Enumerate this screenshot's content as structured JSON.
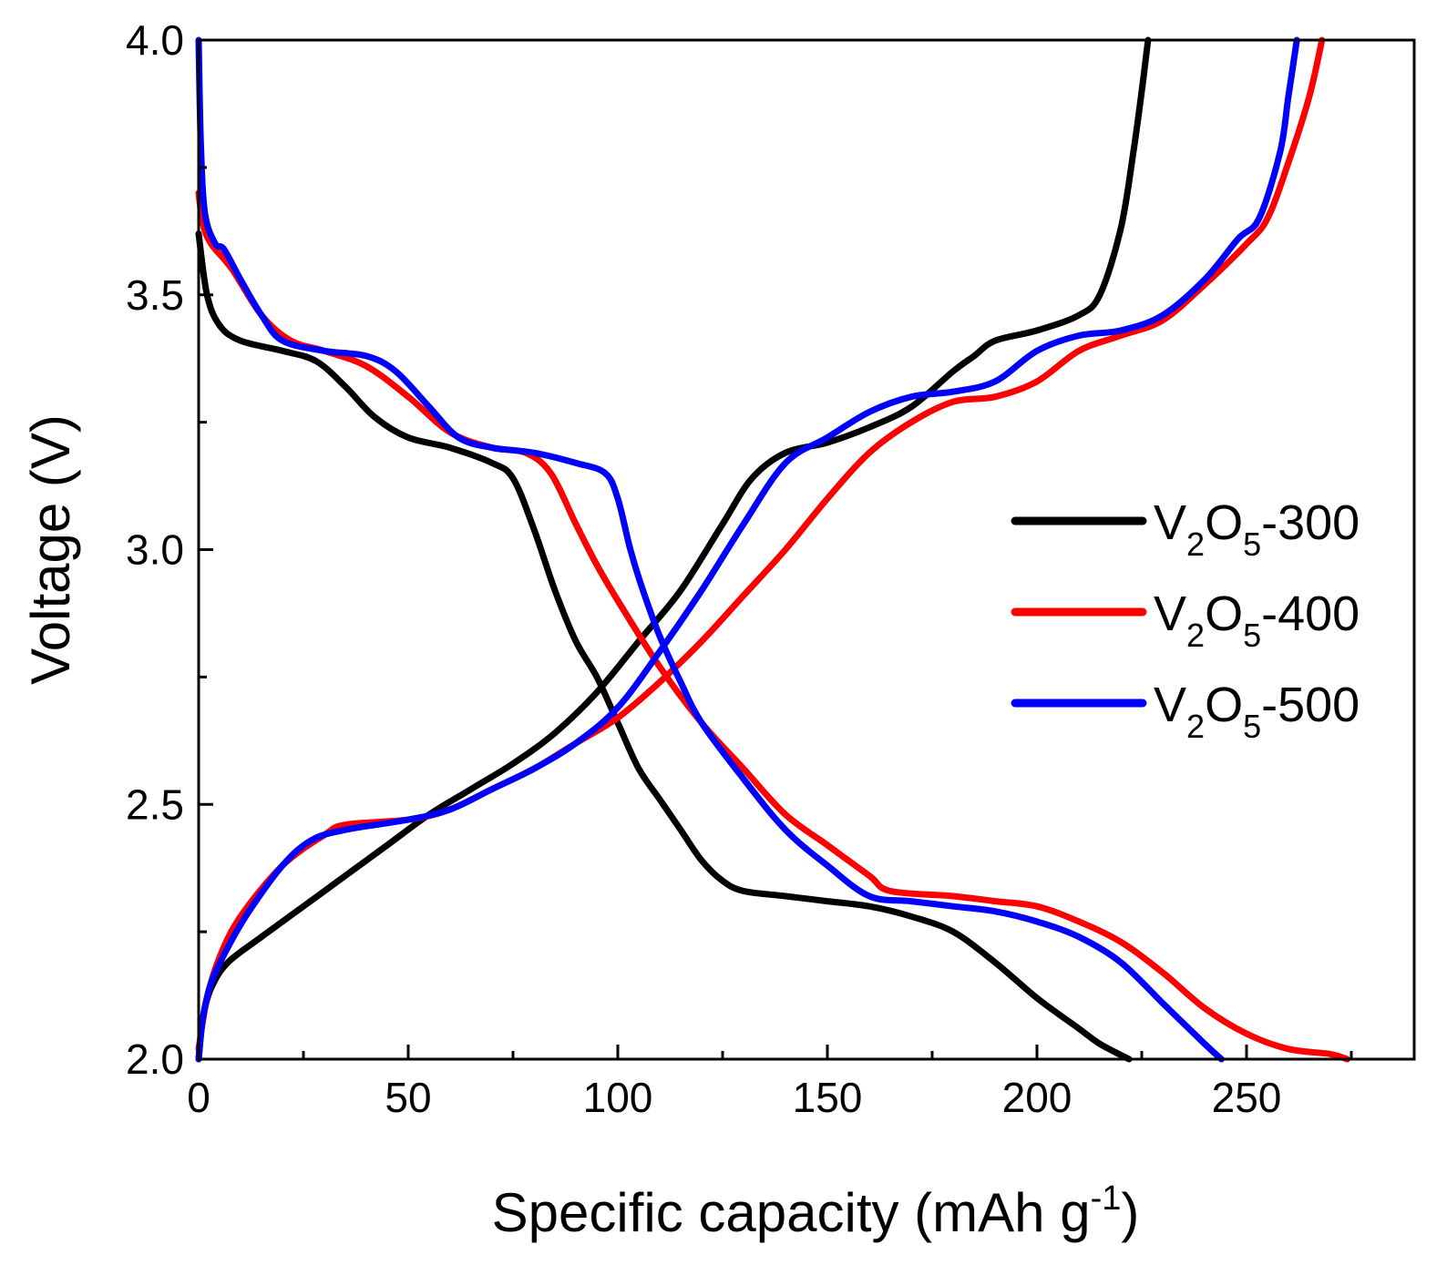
{
  "chart_data": {
    "type": "line",
    "xlabel": "Specific capacity (mAh g",
    "xlabel_sup": "-1",
    "xlabel_close": ")",
    "ylabel": "Voltage (V)",
    "xlim": [
      0,
      290
    ],
    "ylim": [
      2.0,
      4.0
    ],
    "x_ticks": [
      0,
      50,
      100,
      150,
      200,
      250
    ],
    "x_tick_labels": [
      "0",
      "50",
      "100",
      "150",
      "200",
      "250"
    ],
    "y_ticks": [
      2.0,
      2.5,
      3.0,
      3.5,
      4.0
    ],
    "y_tick_labels": [
      "2.0",
      "2.5",
      "3.0",
      "3.5",
      "4.0"
    ],
    "grid": false,
    "legend_position": "right",
    "series": [
      {
        "name": "V2O5-300",
        "legend_prefix": "V",
        "legend_sub1": "2",
        "legend_mid": "O",
        "legend_sub2": "5",
        "legend_suffix": "-300",
        "color": "#000000",
        "discharge": [
          [
            0,
            3.62
          ],
          [
            2,
            3.5
          ],
          [
            5,
            3.44
          ],
          [
            10,
            3.41
          ],
          [
            20,
            3.39
          ],
          [
            28,
            3.37
          ],
          [
            35,
            3.32
          ],
          [
            42,
            3.26
          ],
          [
            50,
            3.22
          ],
          [
            60,
            3.2
          ],
          [
            70,
            3.17
          ],
          [
            75,
            3.14
          ],
          [
            80,
            3.04
          ],
          [
            85,
            2.92
          ],
          [
            90,
            2.82
          ],
          [
            95,
            2.75
          ],
          [
            100,
            2.66
          ],
          [
            105,
            2.57
          ],
          [
            110,
            2.51
          ],
          [
            115,
            2.45
          ],
          [
            120,
            2.39
          ],
          [
            125,
            2.35
          ],
          [
            130,
            2.33
          ],
          [
            140,
            2.32
          ],
          [
            150,
            2.31
          ],
          [
            160,
            2.3
          ],
          [
            170,
            2.28
          ],
          [
            180,
            2.25
          ],
          [
            190,
            2.19
          ],
          [
            200,
            2.12
          ],
          [
            210,
            2.06
          ],
          [
            215,
            2.03
          ],
          [
            222,
            2.0
          ]
        ],
        "charge": [
          [
            0,
            2.0
          ],
          [
            1,
            2.08
          ],
          [
            3,
            2.14
          ],
          [
            7,
            2.19
          ],
          [
            15,
            2.24
          ],
          [
            25,
            2.3
          ],
          [
            35,
            2.36
          ],
          [
            45,
            2.42
          ],
          [
            55,
            2.48
          ],
          [
            65,
            2.53
          ],
          [
            75,
            2.58
          ],
          [
            85,
            2.64
          ],
          [
            95,
            2.72
          ],
          [
            105,
            2.82
          ],
          [
            115,
            2.92
          ],
          [
            125,
            3.05
          ],
          [
            132,
            3.14
          ],
          [
            140,
            3.19
          ],
          [
            150,
            3.21
          ],
          [
            160,
            3.24
          ],
          [
            170,
            3.28
          ],
          [
            180,
            3.35
          ],
          [
            185,
            3.38
          ],
          [
            190,
            3.41
          ],
          [
            200,
            3.43
          ],
          [
            210,
            3.46
          ],
          [
            215,
            3.5
          ],
          [
            220,
            3.63
          ],
          [
            223,
            3.78
          ],
          [
            225,
            3.9
          ],
          [
            226.5,
            4.0
          ]
        ]
      },
      {
        "name": "V2O5-400",
        "legend_prefix": "V",
        "legend_sub1": "2",
        "legend_mid": "O",
        "legend_sub2": "5",
        "legend_suffix": "-400",
        "color": "#ff0000",
        "discharge": [
          [
            0,
            3.7
          ],
          [
            1,
            3.64
          ],
          [
            3,
            3.6
          ],
          [
            8,
            3.55
          ],
          [
            15,
            3.46
          ],
          [
            22,
            3.41
          ],
          [
            30,
            3.39
          ],
          [
            40,
            3.36
          ],
          [
            50,
            3.3
          ],
          [
            60,
            3.23
          ],
          [
            70,
            3.2
          ],
          [
            78,
            3.19
          ],
          [
            84,
            3.15
          ],
          [
            90,
            3.05
          ],
          [
            95,
            2.97
          ],
          [
            100,
            2.9
          ],
          [
            110,
            2.77
          ],
          [
            120,
            2.66
          ],
          [
            130,
            2.57
          ],
          [
            140,
            2.48
          ],
          [
            150,
            2.42
          ],
          [
            160,
            2.36
          ],
          [
            165,
            2.33
          ],
          [
            180,
            2.32
          ],
          [
            190,
            2.31
          ],
          [
            200,
            2.3
          ],
          [
            210,
            2.27
          ],
          [
            220,
            2.23
          ],
          [
            230,
            2.17
          ],
          [
            240,
            2.1
          ],
          [
            250,
            2.05
          ],
          [
            260,
            2.02
          ],
          [
            270,
            2.01
          ],
          [
            274,
            2.0
          ]
        ],
        "charge": [
          [
            0,
            2.02
          ],
          [
            2,
            2.12
          ],
          [
            5,
            2.2
          ],
          [
            10,
            2.28
          ],
          [
            20,
            2.38
          ],
          [
            30,
            2.44
          ],
          [
            35,
            2.46
          ],
          [
            50,
            2.47
          ],
          [
            60,
            2.49
          ],
          [
            70,
            2.53
          ],
          [
            80,
            2.57
          ],
          [
            90,
            2.62
          ],
          [
            100,
            2.67
          ],
          [
            110,
            2.74
          ],
          [
            120,
            2.82
          ],
          [
            130,
            2.91
          ],
          [
            140,
            3.0
          ],
          [
            150,
            3.1
          ],
          [
            160,
            3.19
          ],
          [
            170,
            3.25
          ],
          [
            180,
            3.29
          ],
          [
            190,
            3.3
          ],
          [
            200,
            3.33
          ],
          [
            210,
            3.39
          ],
          [
            220,
            3.42
          ],
          [
            230,
            3.45
          ],
          [
            240,
            3.52
          ],
          [
            250,
            3.6
          ],
          [
            255,
            3.65
          ],
          [
            260,
            3.76
          ],
          [
            265,
            3.89
          ],
          [
            268,
            4.0
          ]
        ]
      },
      {
        "name": "V2O5-500",
        "legend_prefix": "V",
        "legend_sub1": "2",
        "legend_mid": "O",
        "legend_sub2": "5",
        "legend_suffix": "-500",
        "color": "#0000ff",
        "discharge": [
          [
            0,
            4.0
          ],
          [
            0.5,
            3.8
          ],
          [
            1.5,
            3.66
          ],
          [
            4,
            3.6
          ],
          [
            6,
            3.59
          ],
          [
            10,
            3.53
          ],
          [
            15,
            3.46
          ],
          [
            20,
            3.41
          ],
          [
            30,
            3.39
          ],
          [
            40,
            3.38
          ],
          [
            47,
            3.35
          ],
          [
            55,
            3.28
          ],
          [
            62,
            3.22
          ],
          [
            70,
            3.2
          ],
          [
            80,
            3.19
          ],
          [
            90,
            3.17
          ],
          [
            97,
            3.15
          ],
          [
            100,
            3.1
          ],
          [
            103,
            3.0
          ],
          [
            106,
            2.92
          ],
          [
            110,
            2.83
          ],
          [
            115,
            2.74
          ],
          [
            120,
            2.66
          ],
          [
            130,
            2.55
          ],
          [
            140,
            2.45
          ],
          [
            150,
            2.38
          ],
          [
            160,
            2.32
          ],
          [
            170,
            2.31
          ],
          [
            180,
            2.3
          ],
          [
            190,
            2.29
          ],
          [
            200,
            2.27
          ],
          [
            210,
            2.24
          ],
          [
            220,
            2.19
          ],
          [
            230,
            2.11
          ],
          [
            240,
            2.03
          ],
          [
            244,
            2.0
          ]
        ],
        "charge": [
          [
            0,
            2.0
          ],
          [
            1,
            2.08
          ],
          [
            3,
            2.15
          ],
          [
            7,
            2.22
          ],
          [
            12,
            2.29
          ],
          [
            20,
            2.38
          ],
          [
            27,
            2.43
          ],
          [
            35,
            2.45
          ],
          [
            50,
            2.47
          ],
          [
            60,
            2.49
          ],
          [
            70,
            2.53
          ],
          [
            80,
            2.57
          ],
          [
            90,
            2.62
          ],
          [
            100,
            2.69
          ],
          [
            110,
            2.8
          ],
          [
            120,
            2.92
          ],
          [
            130,
            3.05
          ],
          [
            140,
            3.17
          ],
          [
            150,
            3.22
          ],
          [
            160,
            3.27
          ],
          [
            170,
            3.3
          ],
          [
            180,
            3.31
          ],
          [
            190,
            3.33
          ],
          [
            200,
            3.39
          ],
          [
            210,
            3.42
          ],
          [
            220,
            3.43
          ],
          [
            230,
            3.46
          ],
          [
            240,
            3.53
          ],
          [
            248,
            3.61
          ],
          [
            253,
            3.65
          ],
          [
            258,
            3.78
          ],
          [
            260,
            3.89
          ],
          [
            262,
            4.0
          ]
        ]
      }
    ]
  }
}
